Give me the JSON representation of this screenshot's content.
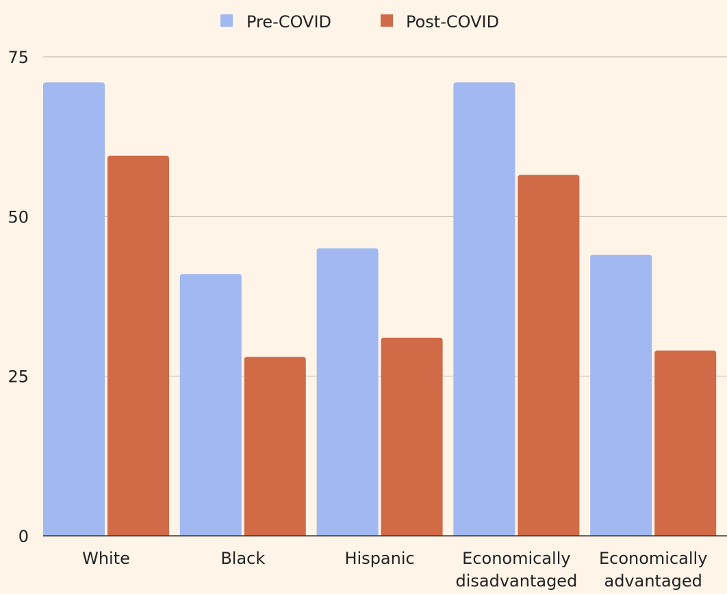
{
  "chart_data": {
    "type": "bar",
    "title": "",
    "xlabel": "",
    "ylabel": "",
    "ylim": [
      0,
      75
    ],
    "yticks": [
      0,
      25,
      50,
      75
    ],
    "grid": true,
    "legend_position": "top",
    "categories": [
      [
        "White"
      ],
      [
        "Black"
      ],
      [
        "Hispanic"
      ],
      [
        "Economically",
        "disadvantaged"
      ],
      [
        "Economically",
        "advantaged"
      ]
    ],
    "series": [
      {
        "name": "Pre-COVID",
        "color": "#a1b8f0",
        "values": [
          71,
          41,
          45,
          71,
          44
        ]
      },
      {
        "name": "Post-COVID",
        "color": "#d06a47",
        "values": [
          59.5,
          28,
          31,
          56.5,
          29
        ]
      }
    ]
  }
}
